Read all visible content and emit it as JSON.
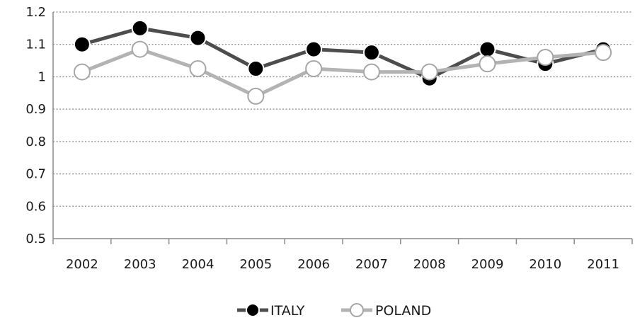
{
  "chart_data": {
    "type": "line",
    "categories": [
      "2002",
      "2003",
      "2004",
      "2005",
      "2006",
      "2007",
      "2008",
      "2009",
      "2010",
      "2011"
    ],
    "series": [
      {
        "name": "ITALY",
        "color": "#4d4d4d",
        "marker_fill": "#000000",
        "marker_stroke": "#ffffff",
        "values": [
          1.1,
          1.15,
          1.12,
          1.025,
          1.085,
          1.075,
          0.995,
          1.085,
          1.04,
          1.085
        ]
      },
      {
        "name": "POLAND",
        "color": "#b3b3b3",
        "marker_fill": "#ffffff",
        "marker_stroke": "#a6a6a6",
        "values": [
          1.015,
          1.085,
          1.025,
          0.94,
          1.025,
          1.015,
          1.015,
          1.04,
          1.06,
          1.075
        ]
      }
    ],
    "y_ticks": [
      "0.5",
      "0.6",
      "0.7",
      "0.8",
      "0.9",
      "1",
      "1.1",
      "1.2"
    ],
    "ylim": [
      0.5,
      1.2
    ],
    "grid": "horizontal-dotted",
    "legend_position": "bottom-center",
    "title": "",
    "xlabel": "",
    "ylabel": ""
  }
}
